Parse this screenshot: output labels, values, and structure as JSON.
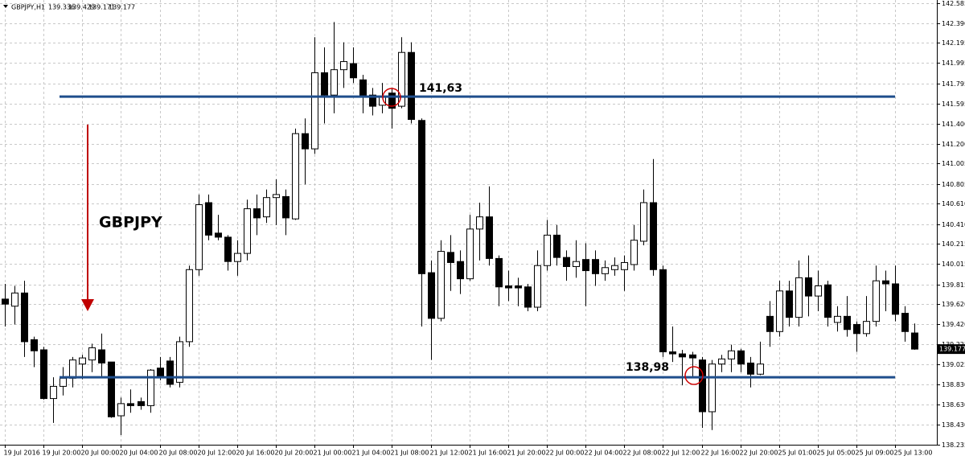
{
  "chart_data": {
    "type": "candlestick",
    "header": "GBPJPY,H1",
    "annotations": [
      "GBPJPY",
      "141,63",
      "138,98"
    ],
    "levels": [
      141.665,
      138.9
    ],
    "level_color": "#1f4e8c",
    "up_color": "#ffffff",
    "down_color": "#000000",
    "grid": true,
    "xlim": [
      -0.5,
      96.3
    ],
    "ylim": [
      138.235,
      142.585
    ],
    "xticks": [
      {
        "value": 0,
        "label": "19 Jul 2016"
      },
      {
        "value": 4,
        "label": "19 Jul 20:00"
      },
      {
        "value": 8,
        "label": "20 Jul 00:00"
      },
      {
        "value": 12,
        "label": "20 Jul 04:00"
      },
      {
        "value": 16,
        "label": "20 Jul 08:00"
      },
      {
        "value": 20,
        "label": "20 Jul 12:00"
      },
      {
        "value": 24,
        "label": "20 Jul 16:00"
      },
      {
        "value": 28,
        "label": "20 Jul 20:00"
      },
      {
        "value": 32,
        "label": "21 Jul 00:00"
      },
      {
        "value": 36,
        "label": "21 Jul 04:00"
      },
      {
        "value": 40,
        "label": "21 Jul 08:00"
      },
      {
        "value": 44,
        "label": "21 Jul 12:00"
      },
      {
        "value": 48,
        "label": "21 Jul 16:00"
      },
      {
        "value": 52,
        "label": "21 Jul 20:00"
      },
      {
        "value": 56,
        "label": "22 Jul 00:00"
      },
      {
        "value": 60,
        "label": "22 Jul 04:00"
      },
      {
        "value": 64,
        "label": "22 Jul 08:00"
      },
      {
        "value": 68,
        "label": "22 Jul 12:00"
      },
      {
        "value": 72,
        "label": "22 Jul 16:00"
      },
      {
        "value": 76,
        "label": "22 Jul 20:00"
      },
      {
        "value": 80,
        "label": "25 Jul 01:00"
      },
      {
        "value": 84,
        "label": "25 Jul 05:00"
      },
      {
        "value": 88,
        "label": "25 Jul 09:00"
      },
      {
        "value": 92,
        "label": "25 Jul 13:00"
      }
    ],
    "yticks": [
      142.585,
      {
        "value": 142.39,
        "label": "142.390"
      },
      142.195,
      141.995,
      141.795,
      141.595,
      {
        "value": 141.4,
        "label": "141.400"
      },
      {
        "value": 141.2,
        "label": "141.200"
      },
      141.005,
      140.805,
      {
        "value": 140.61,
        "label": "140.610"
      },
      {
        "value": 140.41,
        "label": "140.410"
      },
      140.215,
      140.015,
      139.815,
      {
        "value": 139.62,
        "label": "139.620"
      },
      {
        "value": 139.42,
        "label": "139.420"
      },
      139.225,
      139.025,
      {
        "value": 138.83,
        "label": "138.830"
      },
      {
        "value": 138.63,
        "label": "138.630"
      },
      {
        "value": 138.43,
        "label": "138.430"
      },
      138.235
    ],
    "open": [
      139.67,
      139.6,
      139.73,
      139.27,
      139.17,
      138.69,
      138.81,
      138.89,
      139.03,
      139.07,
      139.17,
      139.05,
      138.52,
      138.64,
      138.66,
      138.62,
      138.99,
      139.06,
      138.85,
      139.25,
      139.96,
      140.62,
      140.32,
      140.28,
      140.04,
      140.12,
      140.56,
      140.48,
      140.67,
      140.68,
      140.46,
      141.3,
      141.15,
      141.9,
      141.68,
      141.93,
      141.99,
      141.83,
      141.68,
      141.58,
      141.7,
      141.57,
      142.1,
      141.43,
      139.93,
      139.48,
      140.13,
      140.04,
      139.87,
      140.36,
      140.48,
      140.07,
      139.8,
      139.8,
      139.79,
      139.59,
      140.0,
      140.3,
      140.08,
      139.99,
      140.06,
      140.06,
      139.92,
      139.96,
      139.96,
      140.01,
      140.24,
      140.62,
      139.96,
      139.15,
      139.13,
      139.12,
      139.07,
      138.56,
      139.03,
      139.08,
      139.16,
      139.04,
      138.93,
      139.5,
      139.35,
      139.75,
      139.49,
      139.88,
      139.7,
      139.81,
      139.44,
      139.5,
      139.42,
      139.33,
      139.45,
      139.85,
      139.82,
      139.53,
      139.336
    ],
    "high": [
      139.82,
      139.8,
      139.85,
      139.3,
      139.2,
      138.9,
      139.0,
      139.1,
      139.12,
      139.23,
      139.33,
      139.05,
      138.7,
      138.78,
      138.7,
      138.98,
      139.1,
      139.1,
      139.3,
      140.0,
      140.7,
      140.7,
      140.5,
      140.3,
      140.25,
      140.65,
      140.7,
      140.75,
      140.85,
      140.75,
      141.35,
      141.45,
      142.25,
      142.15,
      142.4,
      142.2,
      142.15,
      141.88,
      141.75,
      141.8,
      141.75,
      142.25,
      142.2,
      141.45,
      140.05,
      140.25,
      140.3,
      140.15,
      140.5,
      140.62,
      140.78,
      140.1,
      139.95,
      139.88,
      139.82,
      140.15,
      140.45,
      140.4,
      140.15,
      140.25,
      140.22,
      140.15,
      140.05,
      140.08,
      140.1,
      140.4,
      140.75,
      141.05,
      140.0,
      139.4,
      139.17,
      139.15,
      139.1,
      139.07,
      139.12,
      139.22,
      139.18,
      139.1,
      139.25,
      139.65,
      139.85,
      139.85,
      140.05,
      140.1,
      139.95,
      139.85,
      139.6,
      139.7,
      139.45,
      139.7,
      140.0,
      139.95,
      140.0,
      139.6,
      139.429
    ],
    "low": [
      139.4,
      139.42,
      139.1,
      139.0,
      138.68,
      138.45,
      138.72,
      138.8,
      138.88,
      138.95,
      138.9,
      138.5,
      138.33,
      138.55,
      138.58,
      138.55,
      138.87,
      138.8,
      138.8,
      139.2,
      139.9,
      140.25,
      140.25,
      139.95,
      139.9,
      140.05,
      140.3,
      140.42,
      140.4,
      140.3,
      140.45,
      140.8,
      141.1,
      141.4,
      141.5,
      141.75,
      141.8,
      141.5,
      141.48,
      141.5,
      141.35,
      141.55,
      141.4,
      139.4,
      139.07,
      139.45,
      139.75,
      139.72,
      139.85,
      140.05,
      140.0,
      139.6,
      139.65,
      139.6,
      139.55,
      139.55,
      139.95,
      140.0,
      139.85,
      139.88,
      139.6,
      139.8,
      139.85,
      139.9,
      139.75,
      139.95,
      140.2,
      139.9,
      139.1,
      139.05,
      138.82,
      138.9,
      138.4,
      138.38,
      138.95,
      138.95,
      138.95,
      138.8,
      138.92,
      139.2,
      139.3,
      139.4,
      139.4,
      139.5,
      139.55,
      139.4,
      139.35,
      139.3,
      139.15,
      139.3,
      139.4,
      139.55,
      139.45,
      139.25,
      139.171
    ],
    "close": [
      139.62,
      139.73,
      139.25,
      139.16,
      138.69,
      138.81,
      138.89,
      139.07,
      139.09,
      139.19,
      139.04,
      138.51,
      138.64,
      138.62,
      138.62,
      138.97,
      138.9,
      138.83,
      139.25,
      139.96,
      140.6,
      140.3,
      140.28,
      140.04,
      140.12,
      140.56,
      140.47,
      140.67,
      140.7,
      140.47,
      141.3,
      141.15,
      141.9,
      141.68,
      141.93,
      142.01,
      141.85,
      141.66,
      141.57,
      141.67,
      141.55,
      142.1,
      141.44,
      139.92,
      139.48,
      140.14,
      140.03,
      139.87,
      140.36,
      140.48,
      140.07,
      139.79,
      139.78,
      139.78,
      139.59,
      140.0,
      140.3,
      140.08,
      139.99,
      140.04,
      139.95,
      139.92,
      139.98,
      140.0,
      140.03,
      140.25,
      140.62,
      139.96,
      139.15,
      139.13,
      139.1,
      139.09,
      138.56,
      139.03,
      139.08,
      139.16,
      139.03,
      138.93,
      139.03,
      139.35,
      139.75,
      139.49,
      139.88,
      139.7,
      139.8,
      139.49,
      139.5,
      139.37,
      139.33,
      139.45,
      139.85,
      139.82,
      139.52,
      139.35,
      139.177
    ]
  }
}
